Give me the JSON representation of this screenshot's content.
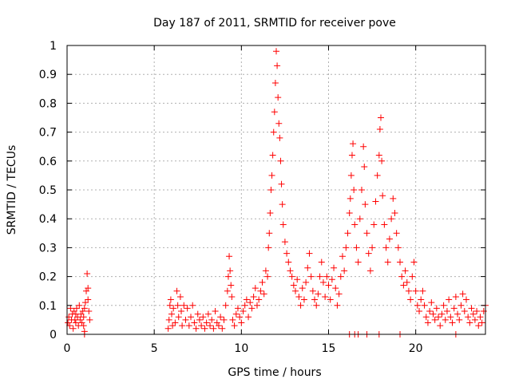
{
  "chart_data": {
    "type": "scatter",
    "title": "Day 187 of 2011, SRMTID for receiver pove",
    "xlabel": "GPS time / hours",
    "ylabel": "SRMTID / TECUs",
    "xlim": [
      0,
      24
    ],
    "ylim": [
      0,
      1
    ],
    "xticks": [
      0,
      5,
      10,
      15,
      20
    ],
    "xtick_labels": [
      "0",
      "5",
      "10",
      "15",
      "20"
    ],
    "yticks": [
      0,
      0.1,
      0.2,
      0.3,
      0.4,
      0.5,
      0.6,
      0.7,
      0.8,
      0.9,
      1
    ],
    "ytick_labels": [
      "0",
      "0.1",
      "0.2",
      "0.3",
      "0.4",
      "0.5",
      "0.6",
      "0.7",
      "0.8",
      "0.9",
      "1"
    ],
    "grid": true,
    "marker": "plus",
    "series": [
      {
        "name": "SRMTID",
        "color": "#ff0000",
        "points": [
          [
            0.05,
            0.04
          ],
          [
            0.1,
            0.06
          ],
          [
            0.15,
            0.03
          ],
          [
            0.2,
            0.09
          ],
          [
            0.25,
            0.05
          ],
          [
            0.3,
            0.07
          ],
          [
            0.35,
            0.02
          ],
          [
            0.4,
            0.08
          ],
          [
            0.45,
            0.05
          ],
          [
            0.5,
            0.04
          ],
          [
            0.55,
            0.09
          ],
          [
            0.6,
            0.06
          ],
          [
            0.65,
            0.03
          ],
          [
            0.7,
            0.1
          ],
          [
            0.75,
            0.05
          ],
          [
            0.8,
            0.07
          ],
          [
            0.85,
            0.04
          ],
          [
            0.9,
            0.08
          ],
          [
            0.95,
            0.06
          ],
          [
            1.0,
            0.09
          ],
          [
            1.05,
            0.11
          ],
          [
            1.1,
            0.15
          ],
          [
            1.15,
            0.21
          ],
          [
            1.2,
            0.12
          ],
          [
            1.25,
            0.08
          ],
          [
            1.3,
            0.05
          ],
          [
            1.0,
            0.01
          ],
          [
            0.95,
            0.03
          ],
          [
            1.2,
            0.16
          ],
          [
            0.5,
            0.07
          ],
          [
            5.8,
            0.02
          ],
          [
            5.85,
            0.05
          ],
          [
            5.9,
            0.1
          ],
          [
            5.95,
            0.12
          ],
          [
            6.0,
            0.07
          ],
          [
            6.05,
            0.03
          ],
          [
            6.1,
            0.09
          ],
          [
            6.2,
            0.04
          ],
          [
            6.3,
            0.15
          ],
          [
            6.35,
            0.1
          ],
          [
            6.4,
            0.06
          ],
          [
            6.5,
            0.13
          ],
          [
            6.55,
            0.08
          ],
          [
            6.6,
            0.03
          ],
          [
            6.7,
            0.1
          ],
          [
            6.8,
            0.05
          ],
          [
            6.9,
            0.09
          ],
          [
            7.0,
            0.03
          ],
          [
            7.1,
            0.06
          ],
          [
            7.2,
            0.1
          ],
          [
            7.3,
            0.04
          ],
          [
            7.4,
            0.02
          ],
          [
            7.5,
            0.07
          ],
          [
            7.6,
            0.05
          ],
          [
            7.7,
            0.03
          ],
          [
            7.8,
            0.06
          ],
          [
            7.9,
            0.02
          ],
          [
            8.0,
            0.04
          ],
          [
            8.1,
            0.07
          ],
          [
            8.2,
            0.03
          ],
          [
            8.3,
            0.05
          ],
          [
            8.4,
            0.02
          ],
          [
            8.5,
            0.08
          ],
          [
            8.6,
            0.04
          ],
          [
            8.7,
            0.03
          ],
          [
            8.8,
            0.06
          ],
          [
            8.9,
            0.02
          ],
          [
            9.0,
            0.05
          ],
          [
            9.1,
            0.1
          ],
          [
            9.2,
            0.15
          ],
          [
            9.25,
            0.2
          ],
          [
            9.3,
            0.27
          ],
          [
            9.35,
            0.22
          ],
          [
            9.4,
            0.17
          ],
          [
            9.45,
            0.13
          ],
          [
            9.5,
            0.05
          ],
          [
            9.6,
            0.03
          ],
          [
            9.7,
            0.07
          ],
          [
            9.8,
            0.09
          ],
          [
            9.9,
            0.06
          ],
          [
            10.0,
            0.04
          ],
          [
            10.1,
            0.08
          ],
          [
            10.2,
            0.1
          ],
          [
            10.3,
            0.12
          ],
          [
            10.4,
            0.06
          ],
          [
            10.5,
            0.11
          ],
          [
            10.6,
            0.09
          ],
          [
            10.7,
            0.13
          ],
          [
            10.8,
            0.16
          ],
          [
            10.9,
            0.1
          ],
          [
            11.0,
            0.12
          ],
          [
            11.1,
            0.15
          ],
          [
            11.2,
            0.18
          ],
          [
            11.3,
            0.14
          ],
          [
            11.4,
            0.22
          ],
          [
            11.5,
            0.2
          ],
          [
            11.55,
            0.3
          ],
          [
            11.6,
            0.35
          ],
          [
            11.65,
            0.42
          ],
          [
            11.7,
            0.5
          ],
          [
            11.75,
            0.55
          ],
          [
            11.8,
            0.62
          ],
          [
            11.85,
            0.7
          ],
          [
            11.9,
            0.77
          ],
          [
            11.95,
            0.87
          ],
          [
            12.0,
            0.98
          ],
          [
            12.05,
            0.93
          ],
          [
            12.1,
            0.82
          ],
          [
            12.15,
            0.73
          ],
          [
            12.2,
            0.68
          ],
          [
            12.25,
            0.6
          ],
          [
            12.3,
            0.52
          ],
          [
            12.35,
            0.45
          ],
          [
            12.4,
            0.38
          ],
          [
            12.5,
            0.32
          ],
          [
            12.6,
            0.28
          ],
          [
            12.7,
            0.25
          ],
          [
            12.8,
            0.22
          ],
          [
            12.9,
            0.2
          ],
          [
            13.0,
            0.17
          ],
          [
            13.1,
            0.15
          ],
          [
            13.2,
            0.19
          ],
          [
            13.3,
            0.13
          ],
          [
            13.4,
            0.1
          ],
          [
            13.5,
            0.16
          ],
          [
            13.6,
            0.12
          ],
          [
            13.7,
            0.18
          ],
          [
            13.8,
            0.23
          ],
          [
            13.9,
            0.28
          ],
          [
            14.0,
            0.2
          ],
          [
            14.1,
            0.15
          ],
          [
            14.2,
            0.12
          ],
          [
            14.3,
            0.1
          ],
          [
            14.4,
            0.14
          ],
          [
            14.5,
            0.2
          ],
          [
            14.6,
            0.25
          ],
          [
            14.7,
            0.18
          ],
          [
            14.8,
            0.13
          ],
          [
            14.9,
            0.2
          ],
          [
            15.0,
            0.17
          ],
          [
            15.1,
            0.12
          ],
          [
            15.2,
            0.19
          ],
          [
            15.3,
            0.23
          ],
          [
            15.4,
            0.16
          ],
          [
            15.5,
            0.1
          ],
          [
            15.6,
            0.14
          ],
          [
            15.7,
            0.2
          ],
          [
            15.8,
            0.27
          ],
          [
            15.9,
            0.22
          ],
          [
            16.0,
            0.3
          ],
          [
            16.1,
            0.35
          ],
          [
            16.2,
            0.42
          ],
          [
            16.25,
            0.47
          ],
          [
            16.3,
            0.55
          ],
          [
            16.35,
            0.62
          ],
          [
            16.4,
            0.66
          ],
          [
            16.45,
            0.5
          ],
          [
            16.5,
            0.38
          ],
          [
            16.6,
            0.3
          ],
          [
            16.7,
            0.25
          ],
          [
            16.8,
            0.4
          ],
          [
            16.9,
            0.5
          ],
          [
            17.0,
            0.65
          ],
          [
            17.05,
            0.58
          ],
          [
            17.1,
            0.45
          ],
          [
            17.2,
            0.35
          ],
          [
            17.3,
            0.28
          ],
          [
            17.4,
            0.22
          ],
          [
            17.5,
            0.3
          ],
          [
            17.6,
            0.38
          ],
          [
            17.7,
            0.46
          ],
          [
            17.8,
            0.55
          ],
          [
            17.9,
            0.62
          ],
          [
            17.95,
            0.71
          ],
          [
            18.0,
            0.75
          ],
          [
            18.05,
            0.6
          ],
          [
            18.1,
            0.48
          ],
          [
            18.2,
            0.38
          ],
          [
            18.3,
            0.3
          ],
          [
            18.4,
            0.25
          ],
          [
            18.5,
            0.33
          ],
          [
            18.6,
            0.4
          ],
          [
            18.7,
            0.47
          ],
          [
            18.8,
            0.42
          ],
          [
            18.9,
            0.35
          ],
          [
            19.0,
            0.3
          ],
          [
            19.1,
            0.25
          ],
          [
            19.2,
            0.2
          ],
          [
            19.3,
            0.17
          ],
          [
            19.4,
            0.22
          ],
          [
            19.5,
            0.18
          ],
          [
            19.6,
            0.15
          ],
          [
            19.7,
            0.12
          ],
          [
            19.8,
            0.2
          ],
          [
            19.9,
            0.25
          ],
          [
            20.0,
            0.15
          ],
          [
            20.1,
            0.1
          ],
          [
            20.2,
            0.08
          ],
          [
            20.3,
            0.12
          ],
          [
            20.4,
            0.15
          ],
          [
            20.5,
            0.1
          ],
          [
            20.6,
            0.06
          ],
          [
            20.7,
            0.04
          ],
          [
            20.8,
            0.08
          ],
          [
            20.9,
            0.11
          ],
          [
            21.0,
            0.07
          ],
          [
            21.1,
            0.05
          ],
          [
            21.2,
            0.09
          ],
          [
            21.3,
            0.06
          ],
          [
            21.4,
            0.03
          ],
          [
            21.5,
            0.07
          ],
          [
            21.6,
            0.1
          ],
          [
            21.7,
            0.05
          ],
          [
            21.8,
            0.08
          ],
          [
            21.9,
            0.12
          ],
          [
            22.0,
            0.06
          ],
          [
            22.1,
            0.04
          ],
          [
            22.2,
            0.09
          ],
          [
            22.3,
            0.13
          ],
          [
            22.4,
            0.07
          ],
          [
            22.5,
            0.05
          ],
          [
            22.6,
            0.1
          ],
          [
            22.7,
            0.14
          ],
          [
            22.8,
            0.08
          ],
          [
            22.9,
            0.12
          ],
          [
            23.0,
            0.06
          ],
          [
            23.1,
            0.04
          ],
          [
            23.2,
            0.09
          ],
          [
            23.3,
            0.07
          ],
          [
            23.4,
            0.05
          ],
          [
            23.5,
            0.08
          ],
          [
            23.6,
            0.03
          ],
          [
            23.7,
            0.06
          ],
          [
            23.8,
            0.04
          ],
          [
            23.9,
            0.08
          ],
          [
            24.0,
            0.1
          ],
          [
            16.2,
            0.0
          ],
          [
            16.5,
            0.0
          ],
          [
            16.7,
            0.0
          ],
          [
            17.2,
            0.0
          ],
          [
            17.9,
            0.0
          ],
          [
            19.1,
            0.0
          ],
          [
            22.3,
            0.0
          ],
          [
            1.0,
            0.0
          ]
        ]
      }
    ]
  }
}
